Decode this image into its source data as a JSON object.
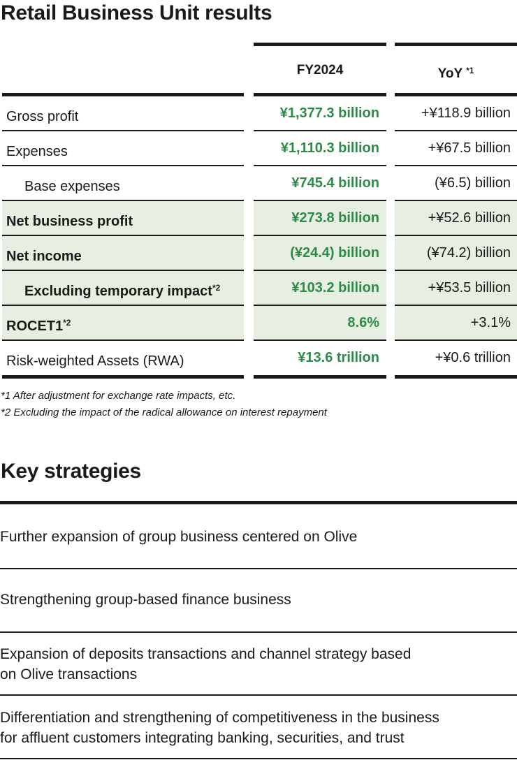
{
  "results": {
    "title": "Retail Business Unit results",
    "col_fy": "FY2024",
    "col_yoy": "YoY",
    "col_yoy_note": "*1",
    "rows": [
      {
        "label": "Gross profit",
        "note": "",
        "fy": "¥1,377.3 billion",
        "yoy": "+¥118.9 billion",
        "highlight": false,
        "indent": false
      },
      {
        "label": "Expenses",
        "note": "",
        "fy": "¥1,110.3 billion",
        "yoy": "+¥67.5 billion",
        "highlight": false,
        "indent": false
      },
      {
        "label": "Base expenses",
        "note": "",
        "fy": "¥745.4 billion",
        "yoy": "(¥6.5) billion",
        "highlight": false,
        "indent": true
      },
      {
        "label": "Net business profit",
        "note": "",
        "fy": "¥273.8 billion",
        "yoy": "+¥52.6 billion",
        "highlight": true,
        "indent": false
      },
      {
        "label": "Net income",
        "note": "",
        "fy": "(¥24.4) billion",
        "yoy": "(¥74.2) billion",
        "highlight": true,
        "indent": false
      },
      {
        "label": "Excluding temporary impact",
        "note": "*2",
        "fy": "¥103.2 billion",
        "yoy": "+¥53.5 billion",
        "highlight": true,
        "indent": true
      },
      {
        "label": "ROCET1",
        "note": "*2",
        "fy": "8.6%",
        "yoy": "+3.1%",
        "highlight": true,
        "indent": false
      },
      {
        "label": "Risk-weighted Assets (RWA)",
        "note": "",
        "fy": "¥13.6 trillion",
        "yoy": "+¥0.6 trillion",
        "highlight": false,
        "indent": false
      }
    ],
    "footnotes": [
      "*1 After adjustment for exchange rate impacts, etc.",
      "*2 Excluding the impact of the radical allowance on interest repayment"
    ]
  },
  "strategies": {
    "title": "Key strategies",
    "items": [
      {
        "line1": "Further expansion of group business centered on Olive",
        "line2": ""
      },
      {
        "line1": "Strengthening group-based finance business",
        "line2": ""
      },
      {
        "line1": "Expansion of deposits transactions and channel strategy based",
        "line2": "on Olive transactions"
      },
      {
        "line1": "Differentiation and strengthening of competitiveness in the business",
        "line2": "for affluent customers integrating banking, securities, and trust"
      }
    ]
  }
}
